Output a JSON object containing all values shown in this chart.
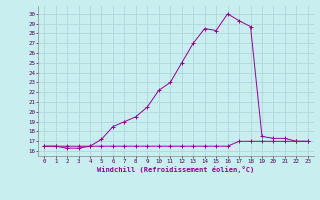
{
  "xlabel": "Windchill (Refroidissement éolien,°C)",
  "background_color": "#c8eef0",
  "line_color": "#990099",
  "grid_color": "#aad4d8",
  "spine_color": "#888888",
  "tick_label_color": "#550055",
  "x_ticks": [
    0,
    1,
    2,
    3,
    4,
    5,
    6,
    7,
    8,
    9,
    10,
    11,
    12,
    13,
    14,
    15,
    16,
    17,
    18,
    19,
    20,
    21,
    22,
    23
  ],
  "y_ticks": [
    16,
    17,
    18,
    19,
    20,
    21,
    22,
    23,
    24,
    25,
    26,
    27,
    28,
    29,
    30
  ],
  "ylim": [
    15.5,
    30.8
  ],
  "xlim": [
    -0.5,
    23.5
  ],
  "series1_x": [
    0,
    1,
    2,
    3,
    4,
    5,
    6,
    7,
    8,
    9,
    10,
    11,
    12,
    13,
    14,
    15,
    16,
    17,
    18,
    19,
    20,
    21,
    22,
    23
  ],
  "series1_y": [
    16.5,
    16.5,
    16.5,
    16.5,
    16.5,
    16.5,
    16.5,
    16.5,
    16.5,
    16.5,
    16.5,
    16.5,
    16.5,
    16.5,
    16.5,
    16.5,
    16.5,
    17.0,
    17.0,
    17.0,
    17.0,
    17.0,
    17.0,
    17.0
  ],
  "series2_x": [
    0,
    1,
    2,
    3,
    4,
    5,
    6,
    7,
    8,
    9,
    10,
    11,
    12,
    13,
    14,
    15,
    16,
    17,
    18,
    19,
    20,
    21,
    22,
    23
  ],
  "series2_y": [
    16.5,
    16.5,
    16.3,
    16.3,
    16.5,
    17.2,
    18.5,
    19.0,
    19.5,
    20.5,
    22.2,
    23.0,
    25.0,
    27.0,
    28.5,
    28.3,
    30.0,
    29.3,
    28.7,
    17.5,
    17.3,
    17.3,
    17.0,
    17.0
  ]
}
